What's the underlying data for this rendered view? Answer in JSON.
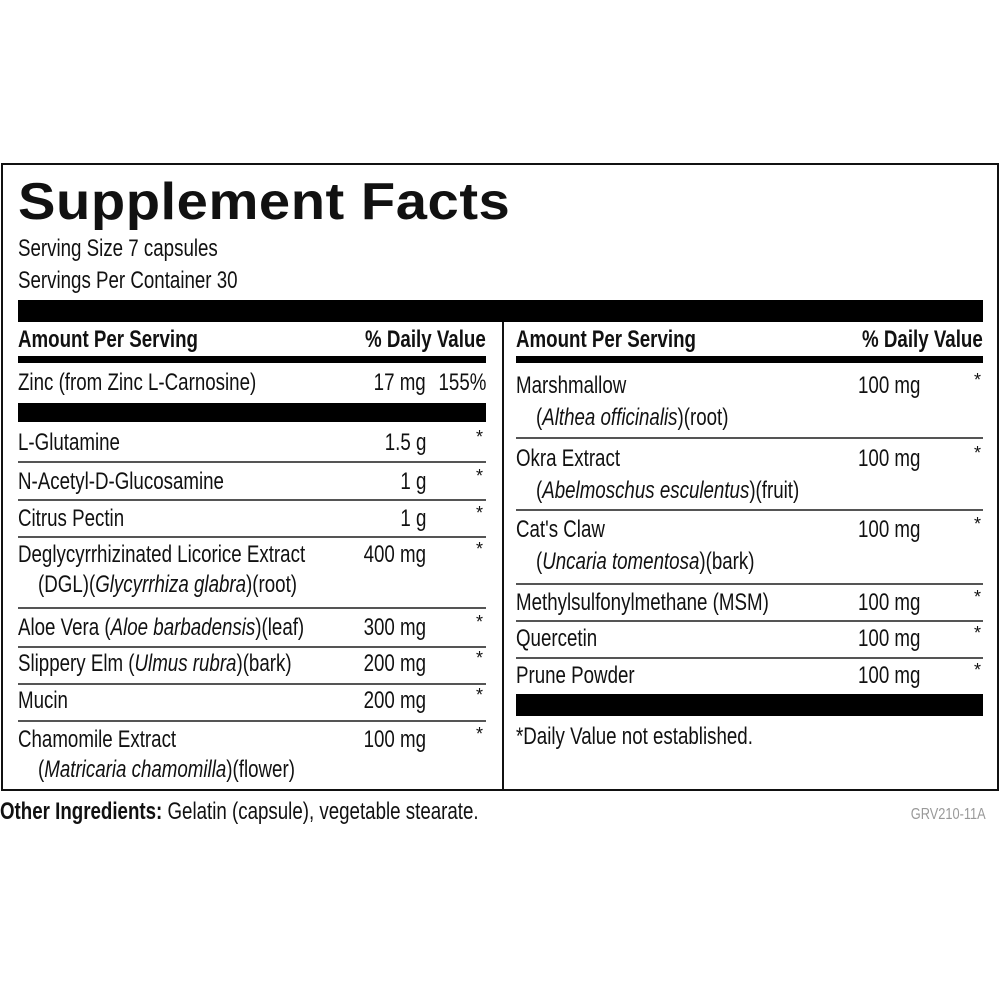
{
  "title": "Supplement Facts",
  "serving_size": "Serving Size 7 capsules",
  "servings_per_container": "Servings Per Container 30",
  "header": {
    "amount": "Amount Per Serving",
    "dv": "% Daily Value"
  },
  "left_rows": [
    {
      "name": "Zinc (from Zinc L-Carnosine)",
      "amount": "17 mg",
      "dv": "155%"
    },
    {
      "name": "L-Glutamine",
      "amount": "1.5 g",
      "dv": "*"
    },
    {
      "name": "N-Acetyl-D-Glucosamine",
      "amount": "1 g",
      "dv": "*"
    },
    {
      "name": "Citrus Pectin",
      "amount": "1 g",
      "dv": "*"
    },
    {
      "name": "Deglycyrrhizinated Licorice Extract",
      "sub_pre": "(DGL)(",
      "sub_italic": "Glycyrrhiza glabra",
      "sub_post": ")(root)",
      "amount": "400 mg",
      "dv": "*"
    },
    {
      "name_pre": "Aloe Vera (",
      "name_italic": "Aloe barbadensis",
      "name_post": ")(leaf)",
      "amount": "300 mg",
      "dv": "*"
    },
    {
      "name_pre": "Slippery Elm (",
      "name_italic": "Ulmus rubra",
      "name_post": ")(bark)",
      "amount": "200 mg",
      "dv": "*"
    },
    {
      "name": "Mucin",
      "amount": "200 mg",
      "dv": "*"
    },
    {
      "name": "Chamomile Extract",
      "sub_pre": "(",
      "sub_italic": "Matricaria chamomilla",
      "sub_post": ")(flower)",
      "amount": "100 mg",
      "dv": "*"
    }
  ],
  "right_rows": [
    {
      "name": "Marshmallow",
      "sub_pre": "(",
      "sub_italic": "Althea officinalis",
      "sub_post": ")(root)",
      "amount": "100 mg",
      "dv": "*"
    },
    {
      "name": "Okra Extract",
      "sub_pre": "(",
      "sub_italic": "Abelmoschus esculentus",
      "sub_post": ")(fruit)",
      "amount": "100 mg",
      "dv": "*"
    },
    {
      "name": "Cat's Claw",
      "sub_pre": "(",
      "sub_italic": "Uncaria tomentosa",
      "sub_post": ")(bark)",
      "amount": "100 mg",
      "dv": "*"
    },
    {
      "name": "Methylsulfonylmethane (MSM)",
      "amount": "100 mg",
      "dv": "*"
    },
    {
      "name": "Quercetin",
      "amount": "100 mg",
      "dv": "*"
    },
    {
      "name": "Prune Powder",
      "amount": "100 mg",
      "dv": "*"
    }
  ],
  "footnote": "*Daily Value not established.",
  "other_label": "Other Ingredients:",
  "other_text": " Gelatin (capsule), vegetable stearate.",
  "product_code": "GRV210-11A"
}
